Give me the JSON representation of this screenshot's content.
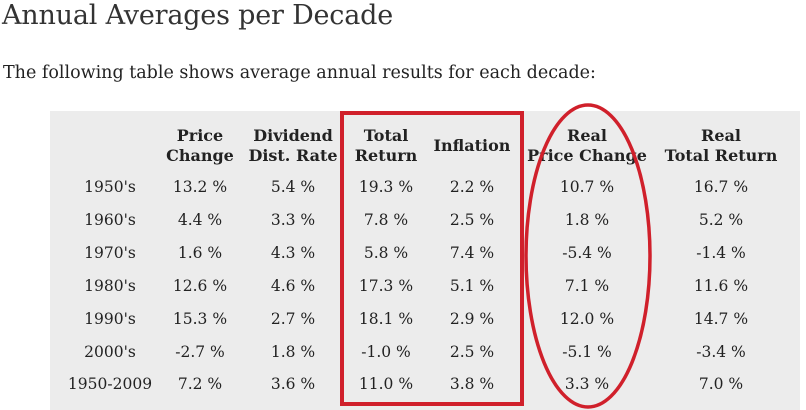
{
  "page": {
    "title": "Annual Averages per Decade",
    "intro": "The following table shows average annual results for each decade:"
  },
  "table": {
    "headers": [
      {
        "line1": "Price",
        "line2": "Change"
      },
      {
        "line1": "Dividend",
        "line2": "Dist. Rate"
      },
      {
        "line1": "Total",
        "line2": "Return"
      },
      {
        "line1": "Inflation",
        "line2": ""
      },
      {
        "line1": "Real",
        "line2": "Price Change"
      },
      {
        "line1": "Real",
        "line2": "Total Return"
      }
    ],
    "rows": [
      {
        "label": "1950's",
        "values": [
          "13.2 %",
          "5.4 %",
          "19.3 %",
          "2.2 %",
          "10.7 %",
          "16.7 %"
        ]
      },
      {
        "label": "1960's",
        "values": [
          "4.4 %",
          "3.3 %",
          "7.8 %",
          "2.5 %",
          "1.8 %",
          "5.2 %"
        ]
      },
      {
        "label": "1970's",
        "values": [
          "1.6 %",
          "4.3 %",
          "5.8 %",
          "7.4 %",
          "-5.4 %",
          "-1.4 %"
        ]
      },
      {
        "label": "1980's",
        "values": [
          "12.6 %",
          "4.6 %",
          "17.3 %",
          "5.1 %",
          "7.1 %",
          "11.6 %"
        ]
      },
      {
        "label": "1990's",
        "values": [
          "15.3 %",
          "2.7 %",
          "18.1 %",
          "2.9 %",
          "12.0 %",
          "14.7 %"
        ]
      },
      {
        "label": "2000's",
        "values": [
          "-2.7 %",
          "1.8 %",
          "-1.0 %",
          "2.5 %",
          "-5.1 %",
          "-3.4 %"
        ]
      },
      {
        "label": "1950-2009",
        "values": [
          "7.2 %",
          "3.6 %",
          "11.0 %",
          "3.8 %",
          "3.3 %",
          "7.0 %"
        ]
      }
    ]
  },
  "annotations": {
    "box_color": "#d0202b",
    "ellipse_color": "#d0202b"
  }
}
